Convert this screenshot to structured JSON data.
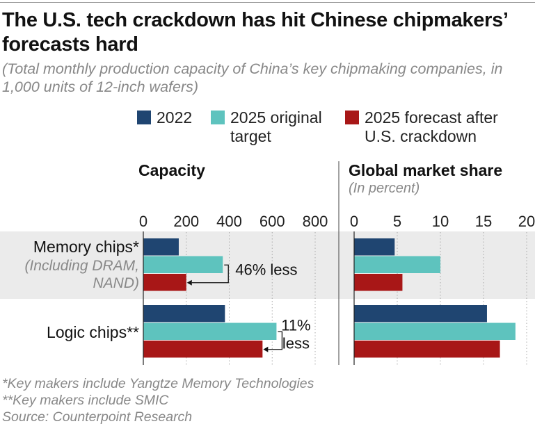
{
  "title": "The U.S. tech crackdown has hit Chinese chipmakers’ forecasts hard",
  "subtitle": "(Total monthly production capacity of China’s key chipmaking companies, in 1,000 units of 12-inch wafers)",
  "legend": [
    {
      "label": "2022",
      "color": "#1f4571"
    },
    {
      "label": "2025 original target",
      "color": "#5ec3be"
    },
    {
      "label": "2025 forecast after U.S. crackdown",
      "color": "#a81717"
    }
  ],
  "footnotes": [
    "*Key makers include Yangtze Memory Technologies",
    "**Key makers include SMIC",
    "Source: Counterpoint Research"
  ],
  "chart_data": [
    {
      "type": "bar",
      "title": "Capacity",
      "categories": [
        "Memory chips* (Including DRAM, NAND)",
        "Logic chips**"
      ],
      "category_labels": [
        {
          "main": "Memory chips*",
          "sub": "(Including DRAM,",
          "sub2": "NAND)"
        },
        {
          "main": "Logic chips**"
        }
      ],
      "series": [
        {
          "name": "2022",
          "values": [
            165,
            380
          ]
        },
        {
          "name": "2025 original target",
          "values": [
            370,
            620
          ]
        },
        {
          "name": "2025 forecast after U.S. crackdown",
          "values": [
            200,
            555
          ]
        }
      ],
      "xlim": [
        0,
        800
      ],
      "ticks": [
        "0",
        "200",
        "400",
        "600",
        "800"
      ],
      "grid": true,
      "annotations": [
        "46% less",
        "11% less"
      ]
    },
    {
      "type": "bar",
      "title": "Global market share",
      "subtitle": "(In percent)",
      "categories": [
        "Memory chips",
        "Logic chips"
      ],
      "series": [
        {
          "name": "2022",
          "values": [
            4.7,
            15.4
          ]
        },
        {
          "name": "2025 original target",
          "values": [
            10,
            18.7
          ]
        },
        {
          "name": "2025 forecast after U.S. crackdown",
          "values": [
            5.6,
            16.9
          ]
        }
      ],
      "xlim": [
        0,
        20
      ],
      "ticks": [
        "0",
        "5",
        "10",
        "15",
        "20"
      ],
      "grid": true
    }
  ]
}
